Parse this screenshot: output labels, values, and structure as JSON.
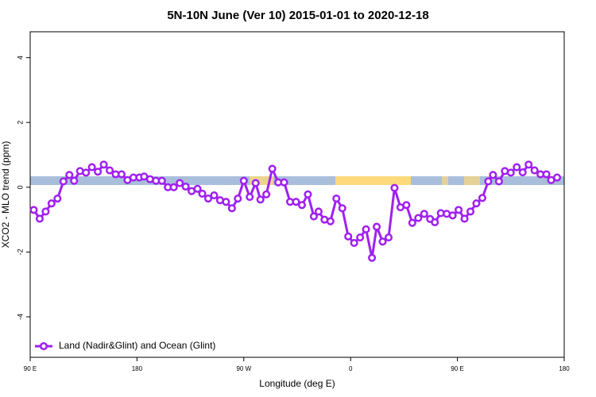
{
  "chart_data": {
    "type": "line",
    "title": "5N-10N June (Ver 10)   2015-01-01 to 2020-12-18",
    "xlabel": "Longitude (deg E)",
    "ylabel": "XCO2 - MLO trend (ppm)",
    "xlim": [
      90,
      540
    ],
    "xticks": [
      {
        "value": 90,
        "label": "90 E"
      },
      180,
      {
        "value": 270,
        "label": "90 W"
      },
      {
        "value": 360,
        "label": "0"
      },
      {
        "value": 450,
        "label": "90 E"
      },
      {
        "value": 540,
        "label": "180"
      }
    ],
    "ylim": [
      -5.25,
      4.8
    ],
    "yticks": [
      -4,
      -2,
      0,
      2,
      4
    ],
    "legend": "bottom-left",
    "x": [
      93,
      98,
      103,
      108,
      113,
      118,
      123,
      127,
      132,
      137,
      142,
      147,
      152,
      157,
      162,
      167,
      172,
      177,
      182,
      186,
      191,
      196,
      201,
      206,
      211,
      216,
      221,
      226,
      231,
      235,
      240,
      245,
      250,
      255,
      260,
      265,
      270,
      275,
      280,
      284,
      289,
      294,
      299,
      304,
      309,
      314,
      319,
      324,
      329,
      333,
      338,
      343,
      348,
      353,
      358,
      363,
      368,
      373,
      378,
      382,
      387,
      392,
      397,
      402,
      407,
      412,
      417,
      422,
      427,
      431,
      436,
      441,
      446,
      451,
      456,
      461,
      466,
      471,
      476,
      480,
      485,
      490,
      495,
      500,
      505,
      510,
      515,
      520,
      525,
      529,
      534
    ],
    "series": [
      {
        "name": "Land (Nadir&Glint) and Ocean (Glint)",
        "color": "#a020f0",
        "values": [
          -0.7,
          -0.97,
          -0.75,
          -0.5,
          -0.35,
          0.18,
          0.38,
          0.2,
          0.5,
          0.45,
          0.62,
          0.48,
          0.7,
          0.52,
          0.4,
          0.4,
          0.22,
          0.3,
          0.3,
          0.33,
          0.25,
          0.2,
          0.2,
          0.0,
          0.0,
          0.13,
          0.02,
          -0.12,
          -0.05,
          -0.2,
          -0.35,
          -0.25,
          -0.4,
          -0.45,
          -0.65,
          -0.35,
          0.2,
          -0.3,
          0.13,
          -0.38,
          -0.22,
          0.57,
          0.15,
          0.15,
          -0.45,
          -0.45,
          -0.55,
          -0.22,
          -0.9,
          -0.75,
          -1.0,
          -1.05,
          -0.35,
          -0.65,
          -1.52,
          -1.72,
          -1.55,
          -1.3,
          -2.18,
          -1.22,
          -1.68,
          -1.55,
          -0.02,
          -0.62,
          -0.55,
          -1.1,
          -0.95,
          -0.82,
          -0.98,
          -1.08,
          -0.8,
          -0.82,
          -0.87,
          -0.7,
          -0.97,
          -0.75,
          -0.5,
          -0.33,
          0.18,
          0.38,
          0.18,
          0.5,
          0.45,
          0.62,
          0.46,
          0.7,
          0.52,
          0.4,
          0.4,
          0.22,
          0.3
        ]
      }
    ]
  }
}
